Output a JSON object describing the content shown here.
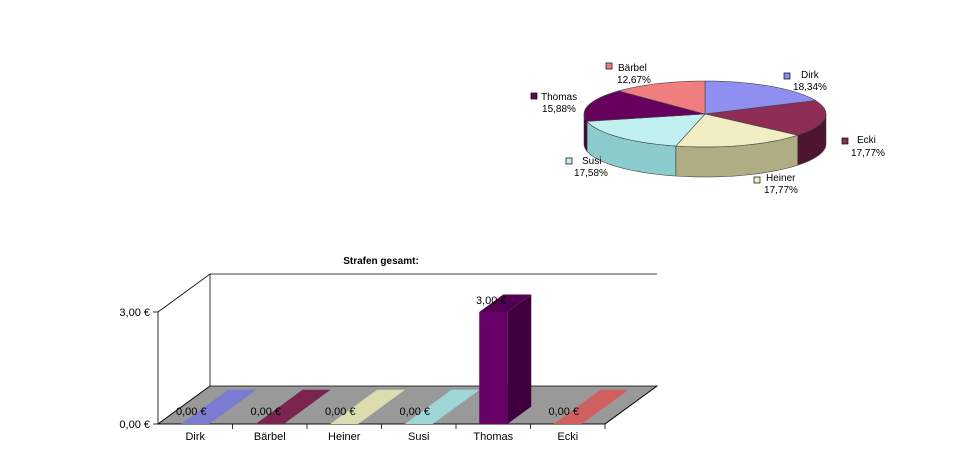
{
  "chart_data": [
    {
      "type": "pie",
      "title": "",
      "slices": [
        {
          "label": "Dirk",
          "value_text": "18,34%",
          "value": 18.34,
          "color": "#8f8ff2",
          "side": "#6c6cc0"
        },
        {
          "label": "Ecki",
          "value_text": "17,77%",
          "value": 17.77,
          "color": "#8e2d55",
          "side": "#4e1530"
        },
        {
          "label": "Heiner",
          "value_text": "17,77%",
          "value": 17.77,
          "color": "#f1eec4",
          "side": "#b0ad84"
        },
        {
          "label": "Susi",
          "value_text": "17,58%",
          "value": 17.58,
          "color": "#c0f0f0",
          "side": "#8ccccc"
        },
        {
          "label": "Thomas",
          "value_text": "15,88%",
          "value": 15.88,
          "color": "#66005c",
          "side": "#3f003a"
        },
        {
          "label": "Bärbel",
          "value_text": "12,67%",
          "value": 12.67,
          "color": "#f07e7e",
          "side": "#b85858"
        }
      ]
    },
    {
      "type": "bar",
      "title": "Strafen gesamt:",
      "categories": [
        "Dirk",
        "Bärbel",
        "Heiner",
        "Susi",
        "Thomas",
        "Ecki"
      ],
      "values": [
        0,
        0,
        0,
        0,
        3,
        0
      ],
      "value_labels": [
        "0,00 €",
        "0,00 €",
        "0,00 €",
        "0,00 €",
        "3,00 €",
        "0,00 €"
      ],
      "colors": [
        "#7b7bd1",
        "#7a2450",
        "#dcdcb0",
        "#9fd6d6",
        "#660066",
        "#d06060"
      ],
      "yticks": [
        0,
        3
      ],
      "ytick_labels": [
        "0,00 €",
        "3,00 €"
      ],
      "ylim": [
        0,
        3
      ]
    }
  ]
}
